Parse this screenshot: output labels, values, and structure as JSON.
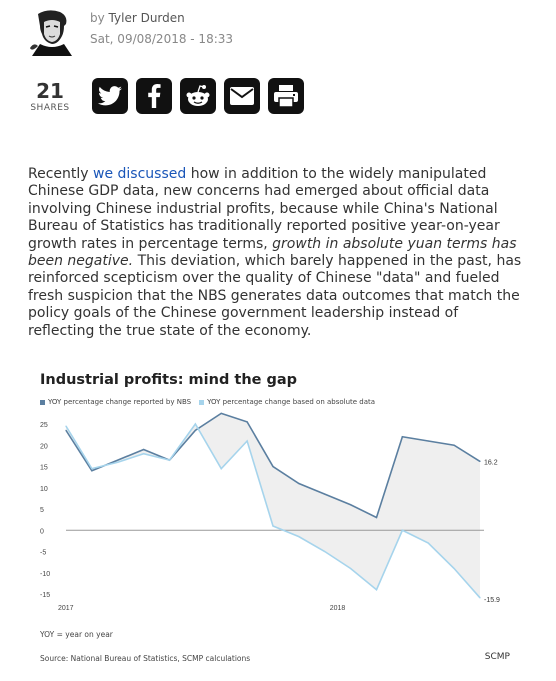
{
  "author": {
    "by_prefix": "by",
    "name": "Tyler Durden",
    "date": "Sat, 09/08/2018 - 18:33"
  },
  "share": {
    "count": "21",
    "label": "SHARES",
    "buttons": [
      "twitter-icon",
      "facebook-icon",
      "reddit-icon",
      "email-icon",
      "print-icon"
    ]
  },
  "article": {
    "p_before_link": "Recently ",
    "link_text": "we discussed",
    "p_after_link": " how in addition to the widely manipulated Chinese GDP data, new concerns had emerged about official data involving Chinese industrial profits, because while China's National Bureau of Statistics has traditionally reported positive year-on-year growth rates in percentage terms, ",
    "emphasis": "growth in absolute yuan terms has been negative.",
    "p_end": " This deviation, which barely happened in the past, has reinforced scepticism over the quality of Chinese \"data\" and fueled fresh suspicion that the NBS generates data outcomes that match the policy goals of the Chinese government leadership instead of reflecting the true state of the economy."
  },
  "chart_data": {
    "type": "line",
    "title": "Industrial profits: mind the gap",
    "x_tick_labels": [
      "2017",
      "2018"
    ],
    "ylim": [
      -15,
      25
    ],
    "y_ticks": [
      25,
      20,
      15,
      10,
      5,
      0,
      -5,
      -10,
      -15
    ],
    "grid": false,
    "legend_placement": "top-left",
    "colors": {
      "reported": "#5b7fa0",
      "absolute": "#a6d4ec",
      "gap_fill": "#efefef",
      "zero_line": "#999999"
    },
    "series": [
      {
        "name": "YOY percentage change reported by NBS",
        "values": [
          23.5,
          14.0,
          16.5,
          19.0,
          16.5,
          23.5,
          27.5,
          25.5,
          15.0,
          11.0,
          8.5,
          6.0,
          3.0,
          22.0,
          21.0,
          20.0,
          16.2
        ]
      },
      {
        "name": "YOY percentage change based on absolute data",
        "values": [
          24.5,
          14.5,
          16.0,
          18.0,
          16.5,
          25.0,
          14.5,
          21.0,
          1.0,
          -1.5,
          -5.0,
          -9.0,
          -14.0,
          0.0,
          -3.0,
          -9.0,
          -15.9
        ]
      }
    ],
    "end_labels": [
      "16.2",
      "-15.9"
    ],
    "note": "YOY = year on year",
    "source": "Source: National Bureau of Statistics, SCMP calculations",
    "brand": "SCMP"
  }
}
